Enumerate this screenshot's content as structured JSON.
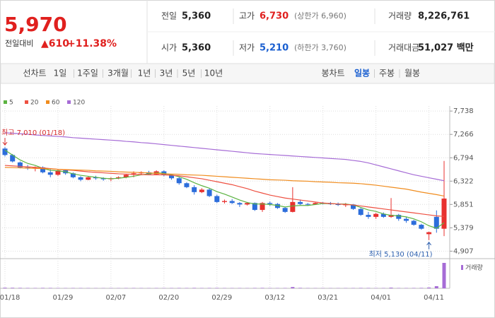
{
  "summary": {
    "price": "5,970",
    "change_label": "전일대비",
    "change": "▲610",
    "change_rate": "+11.38%"
  },
  "info": [
    {
      "label": "전일",
      "value": "5,360"
    },
    {
      "label": "고가",
      "value": "6,730",
      "note": "(상한가 6,960)",
      "color": "#e0201e"
    },
    {
      "label": "거래량",
      "value": "8,226,761"
    },
    {
      "label": "시가",
      "value": "5,360"
    },
    {
      "label": "저가",
      "value": "5,210",
      "note": "(하한가 3,760)",
      "color": "#1a5fd0"
    },
    {
      "label": "거래대금",
      "value": "51,027 백만"
    }
  ],
  "tabs": {
    "line_label": "선차트",
    "line_periods": [
      "1일",
      "1주일",
      "3개월",
      "1년",
      "3년",
      "5년",
      "10년"
    ],
    "candle_label": "봉차트",
    "candle_periods": [
      "일봉",
      "주봉",
      "월봉"
    ],
    "candle_selected": 0
  },
  "chart_data": {
    "type": "candlestick",
    "categories": [
      "01/18",
      null,
      null,
      null,
      null,
      null,
      null,
      "01/29",
      null,
      null,
      null,
      null,
      null,
      null,
      "02/07",
      null,
      null,
      null,
      null,
      null,
      null,
      "02/20",
      null,
      null,
      null,
      null,
      null,
      null,
      "02/29",
      null,
      null,
      null,
      null,
      null,
      null,
      "03/12",
      null,
      null,
      null,
      null,
      null,
      null,
      "03/21",
      null,
      null,
      null,
      null,
      null,
      null,
      "04/01",
      null,
      null,
      null,
      null,
      null,
      null,
      "04/11",
      null,
      null
    ],
    "open": [
      6980,
      6850,
      6700,
      6600,
      6580,
      6600,
      6500,
      6450,
      6540,
      6480,
      6400,
      6350,
      6400,
      6380,
      6360,
      6380,
      6400,
      6450,
      6480,
      6500,
      6460,
      6520,
      6440,
      6380,
      6280,
      6200,
      6100,
      6150,
      6020,
      5900,
      5920,
      5880,
      5850,
      5880,
      5740,
      5880,
      5860,
      5780,
      5700,
      5900,
      5860,
      5850,
      5880,
      5870,
      5860,
      5840,
      5850,
      5760,
      5640,
      5600,
      5660,
      5600,
      5640,
      5560,
      5520,
      5440,
      5250,
      5600,
      5360
    ],
    "high": [
      7010,
      6870,
      6720,
      6650,
      6620,
      6620,
      6560,
      6560,
      6560,
      6500,
      6420,
      6420,
      6430,
      6400,
      6400,
      6420,
      6470,
      6520,
      6520,
      6530,
      6540,
      6540,
      6450,
      6400,
      6300,
      6240,
      6180,
      6170,
      6050,
      5950,
      5960,
      5900,
      5900,
      5890,
      5900,
      5910,
      5880,
      5800,
      6200,
      5950,
      5880,
      5890,
      5900,
      5900,
      5890,
      5880,
      5860,
      5780,
      5700,
      5680,
      5690,
      5980,
      5660,
      5600,
      5540,
      5460,
      5300,
      5730,
      6730
    ],
    "low": [
      6820,
      6700,
      6580,
      6550,
      6520,
      6480,
      6400,
      6430,
      6450,
      6380,
      6320,
      6340,
      6350,
      6330,
      6320,
      6360,
      6380,
      6400,
      6450,
      6440,
      6450,
      6420,
      6350,
      6250,
      6180,
      6050,
      6080,
      6000,
      5880,
      5870,
      5860,
      5800,
      5830,
      5720,
      5700,
      5820,
      5760,
      5680,
      5690,
      5840,
      5820,
      5840,
      5850,
      5840,
      5820,
      5800,
      5740,
      5620,
      5560,
      5560,
      5580,
      5580,
      5520,
      5480,
      5420,
      5340,
      5130,
      5280,
      5210
    ],
    "close": [
      6850,
      6720,
      6600,
      6580,
      6600,
      6500,
      6450,
      6540,
      6480,
      6400,
      6350,
      6400,
      6380,
      6360,
      6380,
      6400,
      6450,
      6480,
      6500,
      6460,
      6520,
      6440,
      6380,
      6280,
      6200,
      6100,
      6150,
      6020,
      5900,
      5920,
      5880,
      5850,
      5880,
      5740,
      5880,
      5860,
      5780,
      5700,
      5900,
      5860,
      5850,
      5880,
      5870,
      5860,
      5840,
      5850,
      5760,
      5640,
      5600,
      5660,
      5600,
      5640,
      5560,
      5520,
      5440,
      5360,
      5290,
      5360,
      5970
    ],
    "up_color": "#e8312f",
    "down_color": "#2c6ddb",
    "series": [
      {
        "name": "5",
        "color": "#5cb341",
        "values": [
          6950,
          6850,
          6750,
          6680,
          6640,
          6580,
          6540,
          6530,
          6510,
          6470,
          6440,
          6420,
          6400,
          6380,
          6370,
          6380,
          6400,
          6420,
          6450,
          6470,
          6490,
          6480,
          6450,
          6410,
          6360,
          6290,
          6230,
          6180,
          6110,
          6060,
          6000,
          5940,
          5890,
          5860,
          5860,
          5850,
          5830,
          5800,
          5820,
          5830,
          5830,
          5850,
          5870,
          5870,
          5860,
          5860,
          5840,
          5790,
          5740,
          5710,
          5660,
          5630,
          5620,
          5600,
          5560,
          5500,
          5420,
          5370,
          5480
        ]
      },
      {
        "name": "20",
        "color": "#ee5041",
        "values": [
          6640,
          6630,
          6620,
          6610,
          6600,
          6590,
          6575,
          6560,
          6550,
          6540,
          6525,
          6510,
          6500,
          6490,
          6480,
          6470,
          6465,
          6460,
          6455,
          6450,
          6450,
          6450,
          6440,
          6430,
          6410,
          6390,
          6370,
          6340,
          6310,
          6280,
          6250,
          6210,
          6170,
          6120,
          6080,
          6040,
          6010,
          5980,
          5960,
          5940,
          5920,
          5900,
          5880,
          5870,
          5860,
          5850,
          5840,
          5820,
          5800,
          5780,
          5760,
          5740,
          5720,
          5700,
          5680,
          5660,
          5640,
          5620,
          5610
        ]
      },
      {
        "name": "60",
        "color": "#f08c1e",
        "values": [
          6600,
          6595,
          6590,
          6585,
          6580,
          6575,
          6570,
          6560,
          6555,
          6550,
          6545,
          6540,
          6530,
          6525,
          6520,
          6510,
          6505,
          6500,
          6495,
          6490,
          6480,
          6470,
          6465,
          6460,
          6450,
          6445,
          6440,
          6430,
          6420,
          6410,
          6400,
          6390,
          6380,
          6370,
          6360,
          6350,
          6345,
          6340,
          6330,
          6325,
          6320,
          6310,
          6305,
          6300,
          6290,
          6285,
          6280,
          6270,
          6255,
          6240,
          6220,
          6200,
          6180,
          6160,
          6130,
          6100,
          6075,
          6050,
          6020
        ]
      },
      {
        "name": "120",
        "color": "#a66cd6",
        "values": [
          7300,
          7290,
          7280,
          7270,
          7255,
          7245,
          7235,
          7225,
          7215,
          7200,
          7190,
          7180,
          7170,
          7160,
          7150,
          7140,
          7125,
          7115,
          7100,
          7090,
          7075,
          7060,
          7045,
          7030,
          7015,
          7000,
          6985,
          6970,
          6955,
          6940,
          6925,
          6910,
          6895,
          6880,
          6870,
          6860,
          6850,
          6840,
          6830,
          6820,
          6810,
          6800,
          6790,
          6780,
          6770,
          6760,
          6740,
          6720,
          6690,
          6650,
          6610,
          6570,
          6530,
          6490,
          6450,
          6420,
          6390,
          6360,
          6330
        ]
      }
    ],
    "volume": {
      "name": "거래량",
      "color": "#a66cd6",
      "values": [
        210000,
        180000,
        150000,
        120000,
        110000,
        140000,
        130000,
        100000,
        90000,
        110000,
        100000,
        90000,
        80000,
        80000,
        90000,
        80000,
        100000,
        110000,
        90000,
        80000,
        100000,
        90000,
        100000,
        120000,
        110000,
        140000,
        100000,
        120000,
        130000,
        90000,
        90000,
        100000,
        80000,
        120000,
        140000,
        100000,
        90000,
        110000,
        420000,
        150000,
        90000,
        80000,
        80000,
        70000,
        80000,
        90000,
        100000,
        130000,
        120000,
        90000,
        100000,
        220000,
        110000,
        100000,
        120000,
        140000,
        260000,
        700000,
        8226761
      ]
    },
    "annotations": [
      "최고 7,010 (01/18)",
      "최저 5,130 (04/11)"
    ],
    "ylim": [
      4770,
      7840
    ],
    "yticks": [
      {
        "value": 7738,
        "label": "7,738"
      },
      {
        "value": 7266,
        "label": "7,266"
      },
      {
        "value": 6794,
        "label": "6,794"
      },
      {
        "value": 6322,
        "label": "6,322"
      },
      {
        "value": 5851,
        "label": "5,851"
      },
      {
        "value": 5379,
        "label": "5,379"
      },
      {
        "value": 4907,
        "label": "4,907"
      }
    ],
    "grid": true
  }
}
